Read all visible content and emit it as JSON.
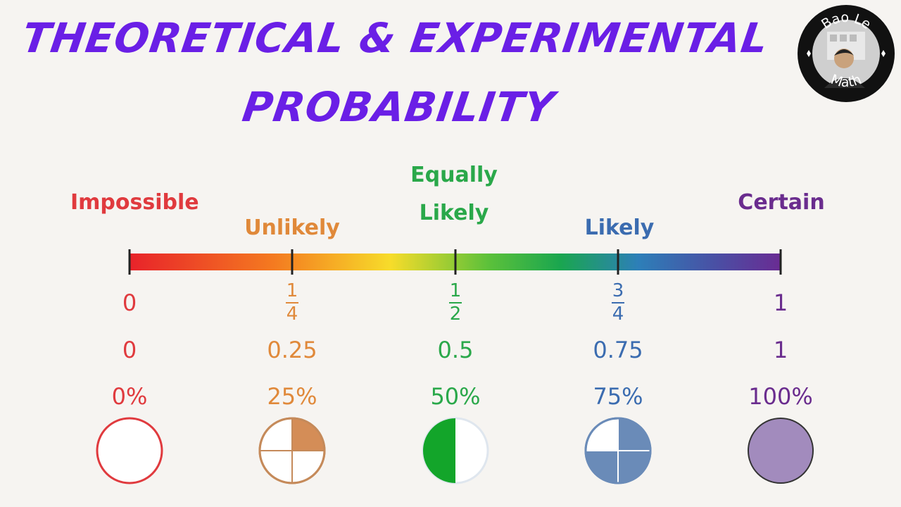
{
  "title": {
    "line1": "THEORETICAL & EXPERIMENTAL",
    "line2": "PROBABILITY"
  },
  "badge": {
    "top_text": "Bao Le",
    "bottom_text": "Math"
  },
  "colors": {
    "title": "#6a1fe6",
    "impossible": "#e03a3e",
    "unlikely": "#e0893a",
    "equally_likely": "#2aa84a",
    "likely": "#3b6cb0",
    "certain": "#6a2c8e",
    "background": "#f6f4f1"
  },
  "categories": {
    "impossible": "Impossible",
    "unlikely": "Unlikely",
    "equally_likely_line1": "Equally",
    "equally_likely_line2": "Likely",
    "likely": "Likely",
    "certain": "Certain"
  },
  "scale": {
    "points": [
      {
        "fraction_int": "0",
        "decimal": "0",
        "percent": "0%",
        "shaded": 0
      },
      {
        "fraction_num": "1",
        "fraction_den": "4",
        "decimal": "0.25",
        "percent": "25%",
        "shaded": 0.25
      },
      {
        "fraction_num": "1",
        "fraction_den": "2",
        "decimal": "0.5",
        "percent": "50%",
        "shaded": 0.5
      },
      {
        "fraction_num": "3",
        "fraction_den": "4",
        "decimal": "0.75",
        "percent": "75%",
        "shaded": 0.75
      },
      {
        "fraction_int": "1",
        "decimal": "1",
        "percent": "100%",
        "shaded": 1
      }
    ]
  }
}
